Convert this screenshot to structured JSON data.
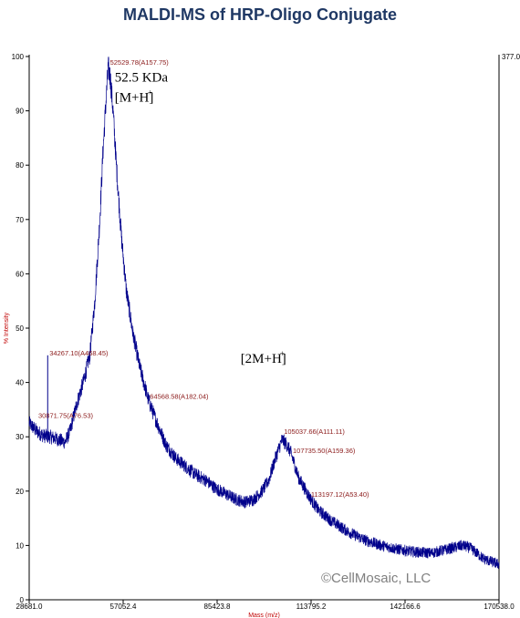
{
  "chart_data": {
    "type": "line",
    "title": "MALDI-MS of HRP-Oligo Conjugate",
    "xlabel": "Mass (m/z)",
    "ylabel": "% Intensity",
    "right_axis_label": "377.0",
    "xlim": [
      28681.0,
      170538.0
    ],
    "ylim": [
      0,
      100
    ],
    "x_ticks": [
      "28681.0",
      "57052.4",
      "85423.8",
      "113795.2",
      "142166.6",
      "170538.0"
    ],
    "y_ticks": [
      "0",
      "10",
      "20",
      "30",
      "40",
      "50",
      "60",
      "70",
      "80",
      "90",
      "100"
    ],
    "colors": {
      "series": "#00008B",
      "peak_label": "#8B1A1A",
      "title": "#1F3864",
      "axis_label": "#C00000"
    },
    "series": [
      {
        "x": [
          28681,
          31000,
          33000,
          35000,
          37500,
          39500,
          41000,
          43000,
          45000,
          47000,
          48500,
          50000,
          51000,
          52000,
          52530,
          53200,
          54000,
          55000,
          56500,
          58000,
          60000,
          62000,
          64569,
          67000,
          70000,
          73000,
          76000,
          79000,
          82000,
          85000,
          88000,
          91000,
          94000,
          96500,
          99000,
          101000,
          103000,
          105038,
          106500,
          107736,
          110000,
          113197,
          116000,
          120000,
          125000,
          130000,
          135000,
          140000,
          145000,
          150000,
          155000,
          159500,
          162000,
          166000,
          170538
        ],
        "y": [
          32.5,
          31.0,
          30.2,
          30.0,
          29.5,
          29.0,
          31.0,
          36.0,
          40.0,
          45.0,
          55.0,
          70.0,
          83.0,
          93.0,
          98.0,
          96.0,
          90.0,
          80.0,
          67.0,
          57.0,
          49.0,
          43.0,
          37.0,
          33.0,
          28.5,
          26.0,
          24.5,
          23.0,
          22.0,
          20.5,
          19.5,
          18.5,
          18.0,
          18.5,
          20.0,
          22.0,
          26.0,
          29.5,
          28.5,
          27.0,
          22.5,
          19.0,
          16.5,
          14.5,
          12.5,
          11.0,
          10.0,
          9.3,
          8.8,
          8.6,
          9.3,
          10.0,
          9.5,
          7.5,
          6.5
        ]
      }
    ],
    "spike": {
      "x": 34267,
      "y": 45
    },
    "peak_labels": [
      {
        "text": "52529.78(A157.75)",
        "x": 52530,
        "y": 98.5
      },
      {
        "text": "34267.10(A468.45)",
        "x": 34267,
        "y": 45.0
      },
      {
        "text": "30871.75(A76.53)",
        "x": 30872,
        "y": 33.5
      },
      {
        "text": "64568.58(A182.04)",
        "x": 64569,
        "y": 37.0
      },
      {
        "text": "105037.66(A111.11)",
        "x": 105038,
        "y": 30.5
      },
      {
        "text": "107735.50(A159.36)",
        "x": 107736,
        "y": 27.0
      },
      {
        "text": "113197.12(A53.40)",
        "x": 113197,
        "y": 19.0
      }
    ],
    "annotations": [
      {
        "line1": "52.5 KDa",
        "line2": "[M+H]",
        "sup": "+",
        "x": 54500,
        "y": 93.0
      },
      {
        "line2": "[2M+H]",
        "sup": "+",
        "x": 92500,
        "y": 45.0
      }
    ],
    "watermark": "©CellMosaic, LLC"
  }
}
